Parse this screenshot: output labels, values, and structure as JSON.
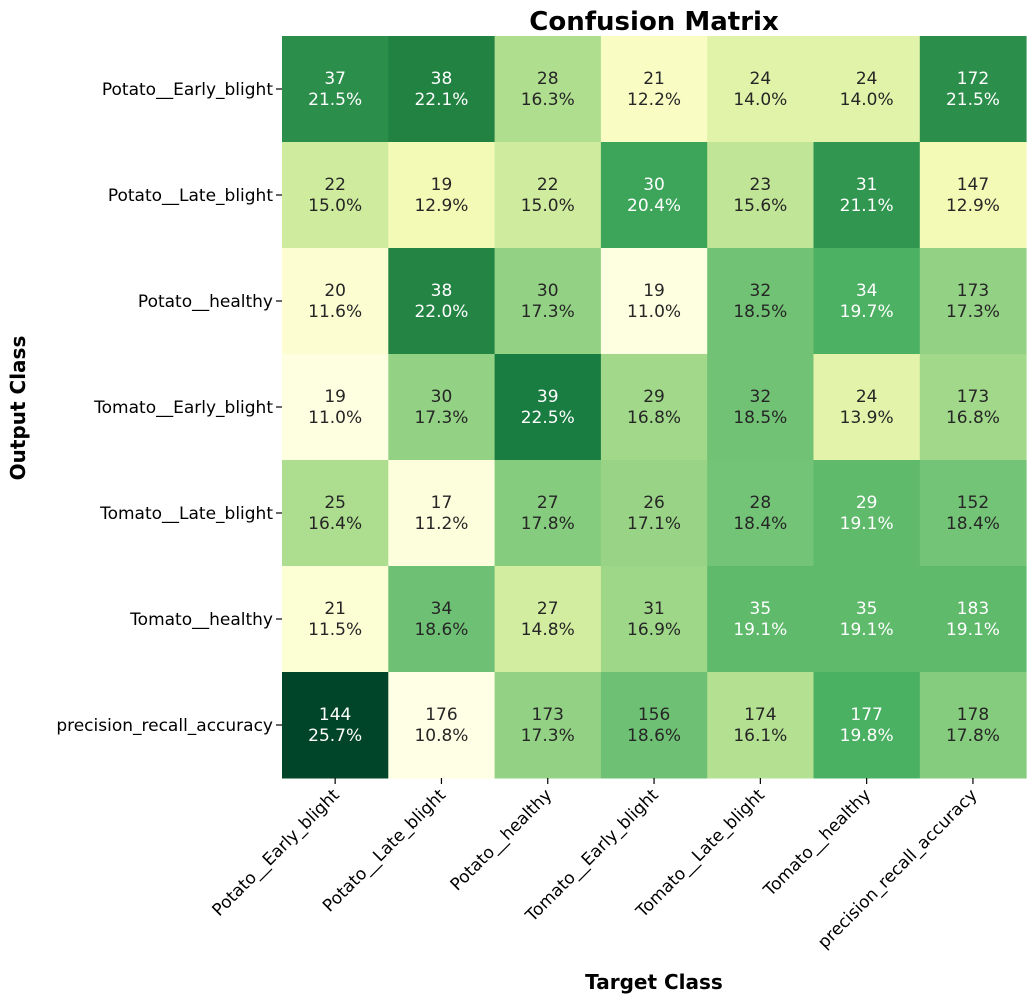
{
  "chart_data": {
    "type": "heatmap",
    "title": "Confusion Matrix",
    "xlabel": "Target Class",
    "ylabel": "Output Class",
    "x_categories": [
      "Potato__Early_blight",
      "Potato__Late_blight",
      "Potato__healthy",
      "Tomato__Early_blight",
      "Tomato__Late_blight",
      "Tomato__healthy",
      "precision_recall_accuracy"
    ],
    "y_categories": [
      "Potato__Early_blight",
      "Potato__Late_blight",
      "Potato__healthy",
      "Tomato__Early_blight",
      "Tomato__Late_blight",
      "Tomato__healthy",
      "precision_recall_accuracy"
    ],
    "counts": [
      [
        37,
        38,
        28,
        21,
        24,
        24,
        172
      ],
      [
        22,
        19,
        22,
        30,
        23,
        31,
        147
      ],
      [
        20,
        38,
        30,
        19,
        32,
        34,
        173
      ],
      [
        19,
        30,
        39,
        29,
        32,
        24,
        173
      ],
      [
        25,
        17,
        27,
        26,
        28,
        29,
        152
      ],
      [
        21,
        34,
        27,
        31,
        35,
        35,
        183
      ],
      [
        144,
        176,
        173,
        156,
        174,
        177,
        178
      ]
    ],
    "percents": [
      [
        "21.5%",
        "22.1%",
        "16.3%",
        "12.2%",
        "14.0%",
        "14.0%",
        "21.5%"
      ],
      [
        "15.0%",
        "12.9%",
        "15.0%",
        "20.4%",
        "15.6%",
        "21.1%",
        "12.9%"
      ],
      [
        "11.6%",
        "22.0%",
        "17.3%",
        "11.0%",
        "18.5%",
        "19.7%",
        "17.3%"
      ],
      [
        "11.0%",
        "17.3%",
        "22.5%",
        "16.8%",
        "18.5%",
        "13.9%",
        "16.8%"
      ],
      [
        "16.4%",
        "11.2%",
        "17.8%",
        "17.1%",
        "18.4%",
        "19.1%",
        "18.4%"
      ],
      [
        "11.5%",
        "18.6%",
        "14.8%",
        "16.9%",
        "19.1%",
        "19.1%",
        "19.1%"
      ],
      [
        "25.7%",
        "10.8%",
        "17.3%",
        "18.6%",
        "16.1%",
        "19.8%",
        "17.8%"
      ]
    ],
    "colormap": "YlGn",
    "color_range_percent": [
      10.8,
      25.7
    ],
    "grid": false,
    "legend": "none"
  }
}
